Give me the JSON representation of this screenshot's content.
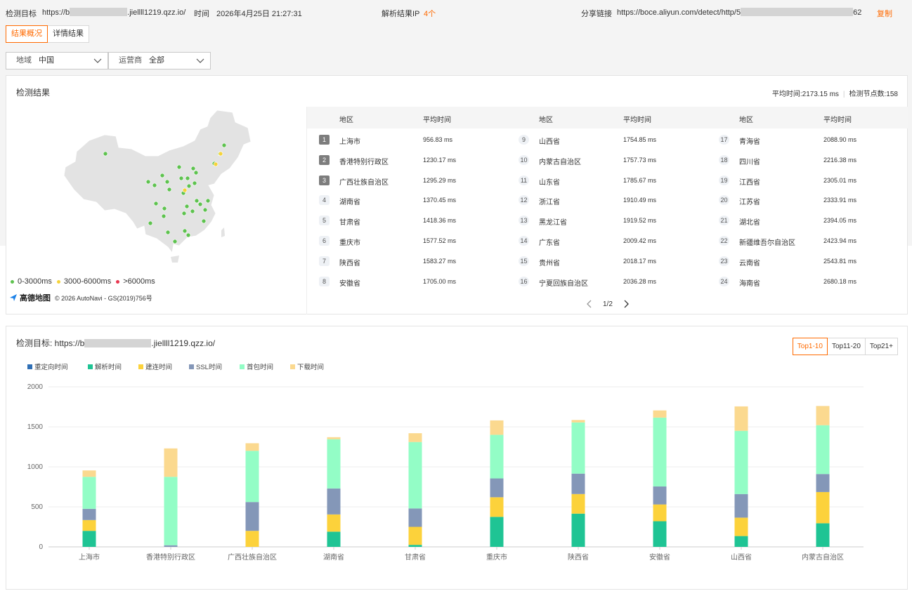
{
  "header": {
    "target_label": "检测目标",
    "target_prefix": "https://b",
    "target_suffix": ".jiellll1219.qzz.io/",
    "time_label": "时间",
    "time_value": "2026年4月25日 21:27:31",
    "ip_label": "解析结果IP",
    "ip_value": "4个",
    "share_label": "分享链接",
    "share_prefix": "https://boce.aliyun.com/detect/http/5",
    "share_suffix": "62",
    "copy_label": "复制"
  },
  "tabs": [
    {
      "label": "结果概况",
      "active": true
    },
    {
      "label": "详情结果",
      "active": false
    }
  ],
  "filters": {
    "region": {
      "label": "地域",
      "value": "中国"
    },
    "carrier": {
      "label": "运营商",
      "value": "全部"
    }
  },
  "summary": {
    "title": "检测结果",
    "avg_time": "平均时间:2173.15 ms",
    "node_count": "检测节点数:158"
  },
  "map": {
    "legend": [
      {
        "label": "0-3000ms",
        "color": "#5ec24f"
      },
      {
        "label": "3000-6000ms",
        "color": "#f5d33a"
      },
      {
        "label": ">6000ms",
        "color": "#e8364f"
      }
    ],
    "logo": "高德地图",
    "copyright": "© 2026 AutoNavi - GS(2019)756号"
  },
  "table": {
    "col_region": "地区",
    "col_time": "平均时间",
    "rows": [
      {
        "rank": "1",
        "region": "上海市",
        "time": "956.83 ms"
      },
      {
        "rank": "2",
        "region": "香港特别行政区",
        "time": "1230.17 ms"
      },
      {
        "rank": "3",
        "region": "广西壮族自治区",
        "time": "1295.29 ms"
      },
      {
        "rank": "4",
        "region": "湖南省",
        "time": "1370.45 ms"
      },
      {
        "rank": "5",
        "region": "甘肃省",
        "time": "1418.36 ms"
      },
      {
        "rank": "6",
        "region": "重庆市",
        "time": "1577.52 ms"
      },
      {
        "rank": "7",
        "region": "陕西省",
        "time": "1583.27 ms"
      },
      {
        "rank": "8",
        "region": "安徽省",
        "time": "1705.00 ms"
      },
      {
        "rank": "9",
        "region": "山西省",
        "time": "1754.85 ms"
      },
      {
        "rank": "10",
        "region": "内蒙古自治区",
        "time": "1757.73 ms"
      },
      {
        "rank": "11",
        "region": "山东省",
        "time": "1785.67 ms"
      },
      {
        "rank": "12",
        "region": "浙江省",
        "time": "1910.49 ms"
      },
      {
        "rank": "13",
        "region": "黑龙江省",
        "time": "1919.52 ms"
      },
      {
        "rank": "14",
        "region": "广东省",
        "time": "2009.42 ms"
      },
      {
        "rank": "15",
        "region": "贵州省",
        "time": "2018.17 ms"
      },
      {
        "rank": "16",
        "region": "宁夏回族自治区",
        "time": "2036.28 ms"
      },
      {
        "rank": "17",
        "region": "青海省",
        "time": "2088.90 ms"
      },
      {
        "rank": "18",
        "region": "四川省",
        "time": "2216.38 ms"
      },
      {
        "rank": "19",
        "region": "江西省",
        "time": "2305.01 ms"
      },
      {
        "rank": "20",
        "region": "江苏省",
        "time": "2333.91 ms"
      },
      {
        "rank": "21",
        "region": "湖北省",
        "time": "2394.05 ms"
      },
      {
        "rank": "22",
        "region": "新疆维吾尔自治区",
        "time": "2423.94 ms"
      },
      {
        "rank": "23",
        "region": "云南省",
        "time": "2543.81 ms"
      },
      {
        "rank": "24",
        "region": "海南省",
        "time": "2680.18 ms"
      }
    ],
    "pager": "1/2"
  },
  "chart_section": {
    "title_prefix": "检测目标: https://b",
    "title_suffix": ".jiellll1219.qzz.io/",
    "buttons": [
      {
        "label": "Top1-10",
        "active": true
      },
      {
        "label": "Top11-20",
        "active": false
      },
      {
        "label": "Top21+",
        "active": false
      }
    ]
  },
  "chart_data": {
    "type": "bar",
    "stacked": true,
    "categories": [
      "上海市",
      "香港特别行政区",
      "广西壮族自治区",
      "湖南省",
      "甘肃省",
      "重庆市",
      "陕西省",
      "安徽省",
      "山西省",
      "内蒙古自治区"
    ],
    "series": [
      {
        "name": "重定向时间",
        "color": "#2f6fb5",
        "values": [
          0,
          0,
          0,
          0,
          0,
          0,
          0,
          0,
          0,
          0
        ]
      },
      {
        "name": "解析时间",
        "color": "#1fc494",
        "values": [
          200,
          0,
          0,
          190,
          25,
          375,
          415,
          320,
          135,
          295
        ]
      },
      {
        "name": "建连时间",
        "color": "#fcd23b",
        "values": [
          135,
          0,
          200,
          215,
          225,
          245,
          245,
          210,
          230,
          390
        ]
      },
      {
        "name": "SSL时间",
        "color": "#8497b8",
        "values": [
          140,
          20,
          360,
          325,
          230,
          235,
          255,
          225,
          295,
          225
        ]
      },
      {
        "name": "首包时间",
        "color": "#93fdc6",
        "values": [
          400,
          855,
          640,
          615,
          830,
          545,
          640,
          860,
          790,
          610
        ]
      },
      {
        "name": "下载时间",
        "color": "#fbd98f",
        "values": [
          80,
          355,
          95,
          25,
          110,
          180,
          30,
          90,
          305,
          240
        ]
      }
    ],
    "ylim": [
      0,
      2000
    ],
    "yticks": [
      0,
      500,
      1000,
      1500,
      2000
    ],
    "grid": true,
    "legend": "top-left"
  }
}
